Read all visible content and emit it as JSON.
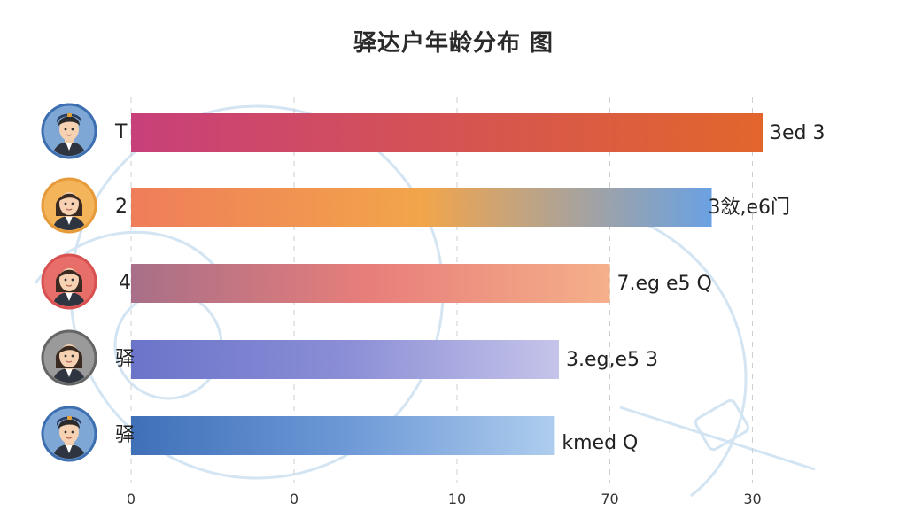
{
  "chart_data": {
    "type": "bar",
    "orientation": "horizontal",
    "title": "驿达户年龄分布 图",
    "categories": [
      "T",
      "2",
      "4",
      "驿",
      "驿"
    ],
    "values": [
      31,
      28.5,
      23.5,
      21,
      20.8
    ],
    "value_labels": [
      "3ed 3",
      "3敜,e6门",
      "7.eg e5 Q",
      "3.eg,e5 3",
      "kmed Q"
    ],
    "x_ticks": [
      {
        "value": 0,
        "label": "0"
      },
      {
        "value": 8,
        "label": "0"
      },
      {
        "value": 16,
        "label": "10"
      },
      {
        "value": 23.5,
        "label": "70"
      },
      {
        "value": 30.5,
        "label": "30"
      }
    ],
    "xlim": [
      0,
      34
    ],
    "grid": true,
    "legend": "none",
    "colors": {
      "bar1": [
        "#c8407a",
        "#e2662c"
      ],
      "bar2": [
        "#ef7d5a",
        "#f2a54a",
        "#6aa1e2"
      ],
      "bar3": [
        "#a86f88",
        "#e87e7a",
        "#f5b08a"
      ],
      "bar4": [
        "#6a74c9",
        "#8b8ed6",
        "#c5c4ea"
      ],
      "bar5": [
        "#3f70b8",
        "#6c98d6",
        "#aecdee"
      ]
    },
    "avatars": [
      {
        "icon": "male-avatar-icon",
        "ring": "#3d6fb0",
        "bg": "#7fa7d6"
      },
      {
        "icon": "female-avatar-icon",
        "ring": "#e69a3a",
        "bg": "#f3b45a"
      },
      {
        "icon": "female-avatar-icon",
        "ring": "#d85050",
        "bg": "#e86e6a"
      },
      {
        "icon": "female-avatar-icon",
        "ring": "#666666",
        "bg": "#9a9a9a"
      },
      {
        "icon": "male-avatar-icon",
        "ring": "#3d6fb0",
        "bg": "#7fa7d6"
      }
    ]
  }
}
